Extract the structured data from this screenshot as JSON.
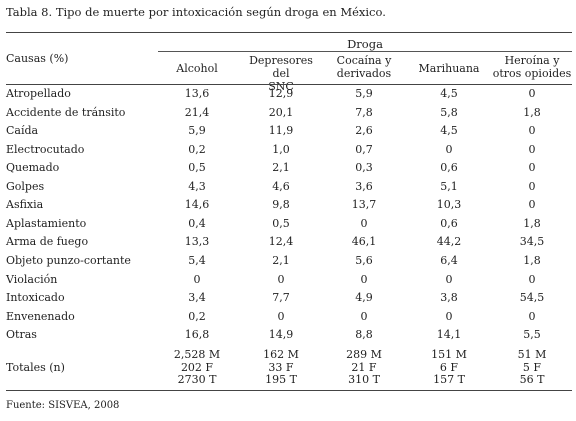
{
  "title": "Tabla 8. Tipo de muerte por intoxicación según droga en México.",
  "header": {
    "causas": "Causas (%)",
    "group": "Droga",
    "columns": [
      {
        "line1": "Alcohol",
        "line2": ""
      },
      {
        "line1": "Depresores del",
        "line2": "SNC"
      },
      {
        "line1": "Cocaína y",
        "line2": "derivados"
      },
      {
        "line1": "Marihuana",
        "line2": ""
      },
      {
        "line1": "Heroína y",
        "line2": "otros opioides"
      }
    ]
  },
  "rows": [
    {
      "causa": "Atropellado",
      "values": [
        "13,6",
        "12,9",
        "5,9",
        "4,5",
        "0"
      ]
    },
    {
      "causa": "Accidente de tránsito",
      "values": [
        "21,4",
        "20,1",
        "7,8",
        "5,8",
        "1,8"
      ]
    },
    {
      "causa": "Caída",
      "values": [
        "5,9",
        "11,9",
        "2,6",
        "4,5",
        "0"
      ]
    },
    {
      "causa": "Electrocutado",
      "values": [
        "0,2",
        "1,0",
        "0,7",
        "0",
        "0"
      ]
    },
    {
      "causa": "Quemado",
      "values": [
        "0,5",
        "2,1",
        "0,3",
        "0,6",
        "0"
      ]
    },
    {
      "causa": "Golpes",
      "values": [
        "4,3",
        "4,6",
        "3,6",
        "5,1",
        "0"
      ]
    },
    {
      "causa": "Asfixia",
      "values": [
        "14,6",
        "9,8",
        "13,7",
        "10,3",
        "0"
      ]
    },
    {
      "causa": "Aplastamiento",
      "values": [
        "0,4",
        "0,5",
        "0",
        "0,6",
        "1,8"
      ]
    },
    {
      "causa": "Arma de fuego",
      "values": [
        "13,3",
        "12,4",
        "46,1",
        "44,2",
        "34,5"
      ]
    },
    {
      "causa": "Objeto punzo-cortante",
      "values": [
        "5,4",
        "2,1",
        "5,6",
        "6,4",
        "1,8"
      ]
    },
    {
      "causa": "Violación",
      "values": [
        "0",
        "0",
        "0",
        "0",
        "0"
      ]
    },
    {
      "causa": "Intoxicado",
      "values": [
        "3,4",
        "7,7",
        "4,9",
        "3,8",
        "54,5"
      ]
    },
    {
      "causa": "Envenenado",
      "values": [
        "0,2",
        "0",
        "0",
        "0",
        "0"
      ]
    },
    {
      "causa": "Otras",
      "values": [
        "16,8",
        "14,9",
        "8,8",
        "14,1",
        "5,5"
      ]
    }
  ],
  "totals": {
    "label": "Totales (n)",
    "columns": [
      {
        "m": "2,528 M",
        "f": "202 F",
        "t": "2730 T"
      },
      {
        "m": "162 M",
        "f": "33 F",
        "t": "195 T"
      },
      {
        "m": "289 M",
        "f": "21 F",
        "t": "310 T"
      },
      {
        "m": "151 M",
        "f": "6 F",
        "t": "157 T"
      },
      {
        "m": "51 M",
        "f": "5 F",
        "t": "56 T"
      }
    ]
  },
  "source": "Fuente: SISVEA, 2008"
}
